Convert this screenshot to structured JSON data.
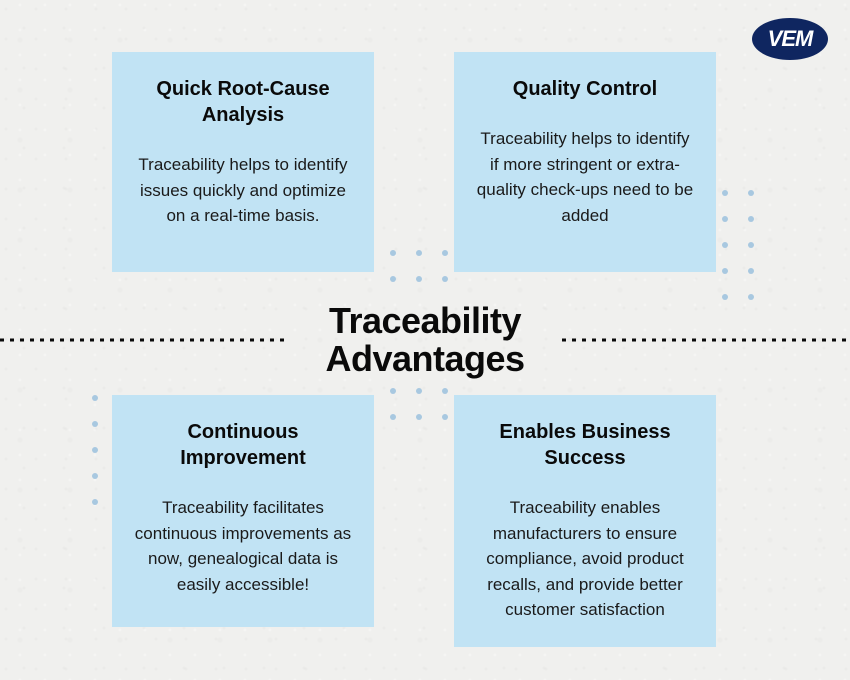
{
  "logo": {
    "text": "VEM"
  },
  "title": {
    "line1": "Traceability",
    "line2": "Advantages"
  },
  "colors": {
    "card_bg": "#c1e3f4",
    "page_bg": "#f0f0ee",
    "text": "#0a0a0a",
    "logo_bg": "#0f2660",
    "logo_text": "#ffffff",
    "dot": "#a8c8e0"
  },
  "cards": {
    "top_left": {
      "title": "Quick Root-Cause Analysis",
      "body": "Traceability helps to identify issues quickly and optimize on a real-time basis."
    },
    "top_right": {
      "title": "Quality Control",
      "body": "Traceability helps to identify if more stringent or extra-quality check-ups need to be added"
    },
    "bottom_left": {
      "title": "Continuous Improvement",
      "body": "Traceability facilitates continuous improvements as now, genealogical data is easily accessible!"
    },
    "bottom_right": {
      "title": "Enables Business Success",
      "body": "Traceability enables manufacturers to ensure compliance, avoid product recalls, and provide better customer satisfaction"
    }
  }
}
